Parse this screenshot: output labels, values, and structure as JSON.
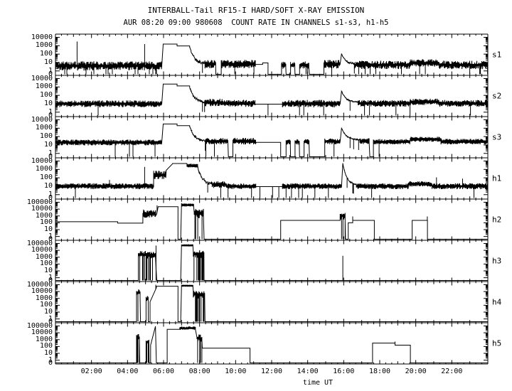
{
  "header": {
    "title": "INTERBALL-Tail RF15-I HARD/SOFT X-RAY EMISSION",
    "subtitle": "AUR 08:20 09:00 980608  COUNT RATE IN CHANNELS s1-s3, h1-h5"
  },
  "chart_data": {
    "type": "line",
    "title": "INTERBALL-Tail RF15-I HARD/SOFT X-RAY EMISSION",
    "subtitle": "AUR 08:20 09:00 980608  COUNT RATE IN CHANNELS s1-s3, h1-h5",
    "line_color": "#000000",
    "background": "#ffffff",
    "x_axis": {
      "label": "time UT",
      "range_hours": [
        0,
        24
      ],
      "labeled_tick_hours": [
        2,
        4,
        6,
        8,
        10,
        12,
        14,
        16,
        18,
        20,
        22
      ],
      "tick_labels": [
        "02:00",
        "04:00",
        "06:00",
        "08:00",
        "10:00",
        "12:00",
        "14:00",
        "16:00",
        "18:00",
        "20:00",
        "22:00"
      ]
    },
    "y_axis_note": "log10 count rate; values in segments/spikes are log10(counts); -0.4 = zero/floor line",
    "segment_encoding": "n=[t0,t1,center,amp,dropProb] noisy band; l=[t0,t1,level] flat line; r=[t0,t1,v0,v1] ramp; d=[t0,t1,v0,v1,amp] decay; f=[t0,t1] floor; spikes=[t,peak]",
    "panels": [
      {
        "id": "s1",
        "label": "s1",
        "ymax_log": 4,
        "ytick_labels": [
          "10000",
          "1000",
          "100",
          "10",
          "1",
          "0"
        ],
        "segments": [
          [
            "n",
            0,
            5.9,
            0.6,
            0.55,
            0.06
          ],
          [
            "r",
            5.9,
            5.98,
            0.6,
            3.2
          ],
          [
            "l",
            5.98,
            6.75,
            3.2
          ],
          [
            "l",
            6.75,
            7.45,
            2.98
          ],
          [
            "d",
            7.45,
            8.3,
            2.9,
            0.85,
            0.2
          ],
          [
            "n",
            8.3,
            8.9,
            0.8,
            0.5,
            0.05
          ],
          [
            "f",
            8.9,
            9.2
          ],
          [
            "n",
            9.2,
            11.1,
            0.82,
            0.5,
            0.05
          ],
          [
            "l",
            11.1,
            11.5,
            0.78
          ],
          [
            "l",
            11.5,
            11.8,
            0.95
          ],
          [
            "f",
            11.8,
            12.55
          ],
          [
            "n",
            12.55,
            12.8,
            0.7,
            0.45,
            0.05
          ],
          [
            "f",
            12.8,
            13.05
          ],
          [
            "n",
            13.05,
            13.3,
            0.7,
            0.45,
            0.05
          ],
          [
            "f",
            13.3,
            13.55
          ],
          [
            "n",
            13.55,
            14.1,
            0.7,
            0.45,
            0.05
          ],
          [
            "f",
            14.1,
            14.9
          ],
          [
            "n",
            14.9,
            15.8,
            0.8,
            0.5,
            0.05
          ],
          [
            "r",
            15.8,
            15.88,
            0.8,
            2.05
          ],
          [
            "d",
            15.88,
            16.6,
            2.05,
            0.85,
            0.1
          ],
          [
            "n",
            16.6,
            19.7,
            0.72,
            0.5,
            0.05
          ],
          [
            "n",
            19.7,
            21.3,
            0.95,
            0.45,
            0.03
          ],
          [
            "n",
            21.3,
            24,
            0.72,
            0.5,
            0.05
          ]
        ],
        "spikes": [
          [
            1.2,
            3.5
          ],
          [
            4.95,
            3.2
          ]
        ]
      },
      {
        "id": "s2",
        "label": "s2",
        "ymax_log": 4,
        "ytick_labels": [
          "10000",
          "1000",
          "100",
          "10",
          "1",
          "0"
        ],
        "segments": [
          [
            "n",
            0,
            5.9,
            1.0,
            0.4,
            0.02
          ],
          [
            "r",
            5.9,
            5.98,
            1.0,
            3.35
          ],
          [
            "l",
            5.98,
            6.75,
            3.35
          ],
          [
            "l",
            6.75,
            7.45,
            3.12
          ],
          [
            "d",
            7.45,
            8.3,
            3.05,
            1.15,
            0.18
          ],
          [
            "n",
            8.3,
            9.3,
            1.15,
            0.45,
            0.02
          ],
          [
            "n",
            9.3,
            11.1,
            1.05,
            0.42,
            0.02
          ],
          [
            "l",
            11.1,
            12.6,
            0.95
          ],
          [
            "n",
            12.6,
            15.8,
            1.02,
            0.45,
            0.03
          ],
          [
            "r",
            15.8,
            15.88,
            1.0,
            2.5
          ],
          [
            "d",
            15.88,
            16.8,
            2.5,
            1.15,
            0.08
          ],
          [
            "n",
            16.8,
            19.7,
            1.05,
            0.4,
            0.02
          ],
          [
            "n",
            19.7,
            21.3,
            1.22,
            0.38,
            0.02
          ],
          [
            "n",
            21.3,
            24,
            1.05,
            0.4,
            0.02
          ]
        ],
        "spikes": [
          [
            11.8,
            -0.4
          ],
          [
            18.9,
            -0.4
          ]
        ]
      },
      {
        "id": "s3",
        "label": "s3",
        "ymax_log": 4,
        "ytick_labels": [
          "10000",
          "1000",
          "100",
          "10",
          "1",
          "0"
        ],
        "segments": [
          [
            "n",
            0,
            5.9,
            1.3,
            0.35,
            0.02
          ],
          [
            "r",
            5.9,
            5.98,
            1.3,
            3.5
          ],
          [
            "l",
            5.98,
            6.75,
            3.5
          ],
          [
            "l",
            6.75,
            7.45,
            3.3
          ],
          [
            "d",
            7.45,
            8.35,
            3.25,
            1.45,
            0.15
          ],
          [
            "n",
            8.35,
            9.6,
            1.45,
            0.38,
            0.02
          ],
          [
            "f",
            9.6,
            9.85
          ],
          [
            "n",
            9.85,
            11.15,
            1.45,
            0.4,
            0.02
          ],
          [
            "l",
            11.15,
            12.5,
            1.32
          ],
          [
            "f",
            12.5,
            12.8
          ],
          [
            "n",
            12.8,
            13.05,
            1.38,
            0.35,
            0.02
          ],
          [
            "f",
            13.05,
            13.3
          ],
          [
            "n",
            13.3,
            13.55,
            1.38,
            0.35,
            0.02
          ],
          [
            "f",
            13.55,
            13.8
          ],
          [
            "n",
            13.8,
            14.1,
            1.38,
            0.35,
            0.02
          ],
          [
            "f",
            14.1,
            14.95
          ],
          [
            "n",
            14.95,
            15.8,
            1.42,
            0.35,
            0.02
          ],
          [
            "r",
            15.8,
            15.88,
            1.4,
            3.0
          ],
          [
            "d",
            15.88,
            16.9,
            3.0,
            1.55,
            0.08
          ],
          [
            "n",
            16.9,
            17.45,
            1.45,
            0.35,
            0.02
          ],
          [
            "f",
            17.45,
            17.65
          ],
          [
            "n",
            17.65,
            19.7,
            1.38,
            0.33,
            0.02
          ],
          [
            "n",
            19.7,
            21.4,
            1.68,
            0.3,
            0.01
          ],
          [
            "n",
            21.4,
            24,
            1.4,
            0.33,
            0.02
          ]
        ],
        "spikes": []
      },
      {
        "id": "h1",
        "label": "h1",
        "ymax_log": 4,
        "ytick_labels": [
          "10000",
          "1000",
          "100",
          "10",
          "1",
          "0"
        ],
        "segments": [
          [
            "n",
            0,
            5.45,
            1.0,
            0.35,
            0.02
          ],
          [
            "n",
            5.45,
            6.15,
            2.35,
            0.5,
            0
          ],
          [
            "r",
            6.15,
            6.5,
            2.9,
            3.68
          ],
          [
            "l",
            6.5,
            7.3,
            3.7
          ],
          [
            "n",
            7.3,
            7.9,
            3.45,
            0.22,
            0
          ],
          [
            "d",
            7.9,
            8.7,
            3.4,
            1.25,
            0.25
          ],
          [
            "n",
            8.7,
            9.5,
            1.2,
            0.4,
            0.02
          ],
          [
            "n",
            9.5,
            11.15,
            1.0,
            0.32,
            0.02
          ],
          [
            "l",
            11.15,
            12.6,
            0.95
          ],
          [
            "n",
            12.6,
            15.88,
            1.0,
            0.35,
            0.02
          ],
          [
            "r",
            15.88,
            15.95,
            1.0,
            3.75
          ],
          [
            "d",
            15.95,
            16.7,
            3.75,
            1.15,
            0.1
          ],
          [
            "n",
            16.7,
            19.6,
            1.0,
            0.35,
            0.02
          ],
          [
            "n",
            19.6,
            20.9,
            1.28,
            0.32,
            0.02
          ],
          [
            "n",
            20.9,
            24,
            1.0,
            0.35,
            0.02
          ]
        ],
        "spikes": [
          [
            3.0,
            1.75
          ],
          [
            4.95,
            3.3
          ],
          [
            11.35,
            -0.4
          ],
          [
            12.05,
            -0.4
          ],
          [
            12.4,
            -0.4
          ],
          [
            12.8,
            -0.4
          ],
          [
            13.1,
            -0.4
          ],
          [
            13.5,
            -0.4
          ],
          [
            14.4,
            -0.4
          ],
          [
            15.15,
            -0.4
          ],
          [
            17.55,
            -0.4
          ],
          [
            21.15,
            2.05
          ],
          [
            22.6,
            1.9
          ]
        ]
      },
      {
        "id": "h2",
        "label": "h2",
        "ymax_log": 5,
        "ytick_labels": [
          "100000",
          "10000",
          "1000",
          "100",
          "10",
          "1",
          "0"
        ],
        "segments": [
          [
            "l",
            0,
            3.45,
            2.15
          ],
          [
            "l",
            3.45,
            4.85,
            1.95
          ],
          [
            "n",
            4.85,
            5.6,
            3.3,
            0.65,
            0.15
          ],
          [
            "r",
            5.62,
            5.7,
            3.3,
            4.35
          ],
          [
            "l",
            5.7,
            6.8,
            4.35
          ],
          [
            "f",
            6.8,
            6.95
          ],
          [
            "r",
            6.95,
            7.0,
            -0.4,
            4.88
          ],
          [
            "n",
            7.0,
            7.7,
            4.6,
            0.22,
            0
          ],
          [
            "n",
            7.7,
            8.25,
            3.35,
            0.7,
            0.3
          ],
          [
            "f",
            8.25,
            12.5
          ],
          [
            "l",
            12.5,
            15.8,
            2.35
          ],
          [
            "n",
            15.8,
            16.1,
            3.0,
            0.55,
            0.25
          ],
          [
            "f",
            16.1,
            16.25
          ],
          [
            "l",
            16.25,
            16.5,
            2.0
          ],
          [
            "l",
            16.5,
            17.7,
            2.35
          ],
          [
            "f",
            17.7,
            19.8
          ],
          [
            "l",
            19.8,
            20.65,
            2.35
          ],
          [
            "f",
            20.65,
            24
          ]
        ],
        "spikes": [
          [
            5.64,
            4.55
          ],
          [
            16.5,
            2.92
          ],
          [
            20.64,
            2.92
          ]
        ]
      },
      {
        "id": "h3",
        "label": "h3",
        "ymax_log": 5,
        "ytick_labels": [
          "100000",
          "10000",
          "1000",
          "100",
          "10",
          "1",
          "0"
        ],
        "segments": [
          [
            "f",
            0,
            4.6
          ],
          [
            "n",
            4.6,
            5.55,
            3.35,
            0.55,
            0.45
          ],
          [
            "f",
            5.62,
            6.95
          ],
          [
            "r",
            6.95,
            7.0,
            -0.4,
            4.85
          ],
          [
            "n",
            7.0,
            7.65,
            4.72,
            0.15,
            0
          ],
          [
            "n",
            7.65,
            8.25,
            3.45,
            0.6,
            0.35
          ],
          [
            "f",
            8.25,
            24
          ]
        ],
        "spikes": [
          [
            5.58,
            4.7
          ],
          [
            15.95,
            3.2
          ]
        ]
      },
      {
        "id": "h4",
        "label": "h4",
        "ymax_log": 5,
        "ytick_labels": [
          "100000",
          "10000",
          "1000",
          "100",
          "10",
          "1",
          "0"
        ],
        "segments": [
          [
            "f",
            0,
            4.5
          ],
          [
            "n",
            4.5,
            4.72,
            3.8,
            0.6,
            0.4
          ],
          [
            "f",
            4.72,
            5.03
          ],
          [
            "n",
            5.03,
            5.15,
            2.9,
            0.5,
            0.3
          ],
          [
            "f",
            5.15,
            5.25
          ],
          [
            "r",
            5.25,
            5.6,
            2.5,
            4.55
          ],
          [
            "l",
            5.6,
            6.8,
            4.78
          ],
          [
            "f",
            6.8,
            6.95
          ],
          [
            "r",
            6.95,
            7.0,
            -0.4,
            4.95
          ],
          [
            "n",
            7.0,
            7.65,
            4.85,
            0.13,
            0
          ],
          [
            "n",
            7.65,
            8.3,
            3.6,
            0.6,
            0.35
          ],
          [
            "f",
            8.3,
            24
          ]
        ],
        "spikes": [
          [
            5.57,
            5.0
          ]
        ]
      },
      {
        "id": "h5",
        "label": "h5",
        "ymax_log": 5,
        "ytick_labels": [
          "100000",
          "10000",
          "1000",
          "100",
          "10",
          "1",
          "0"
        ],
        "segments": [
          [
            "f",
            0,
            4.5
          ],
          [
            "n",
            4.5,
            4.68,
            3.3,
            0.5,
            0.4
          ],
          [
            "f",
            4.68,
            5.03
          ],
          [
            "n",
            5.03,
            5.2,
            2.65,
            0.45,
            0.2
          ],
          [
            "f",
            5.2,
            5.28
          ],
          [
            "r",
            5.28,
            5.55,
            2.2,
            4.95
          ],
          [
            "r",
            5.55,
            5.6,
            4.95,
            -0.4
          ],
          [
            "f",
            5.6,
            6.2
          ],
          [
            "l",
            6.2,
            6.9,
            4.5
          ],
          [
            "n",
            6.9,
            7.8,
            4.68,
            0.25,
            0
          ],
          [
            "n",
            7.85,
            8.15,
            3.2,
            0.6,
            0.35
          ],
          [
            "l",
            8.15,
            10.8,
            1.75
          ],
          [
            "f",
            10.8,
            17.6
          ],
          [
            "l",
            17.6,
            18.85,
            2.5
          ],
          [
            "l",
            18.85,
            19.7,
            2.2
          ],
          [
            "f",
            19.7,
            24
          ]
        ],
        "spikes": [
          [
            18.85,
            2.72
          ]
        ]
      }
    ]
  }
}
